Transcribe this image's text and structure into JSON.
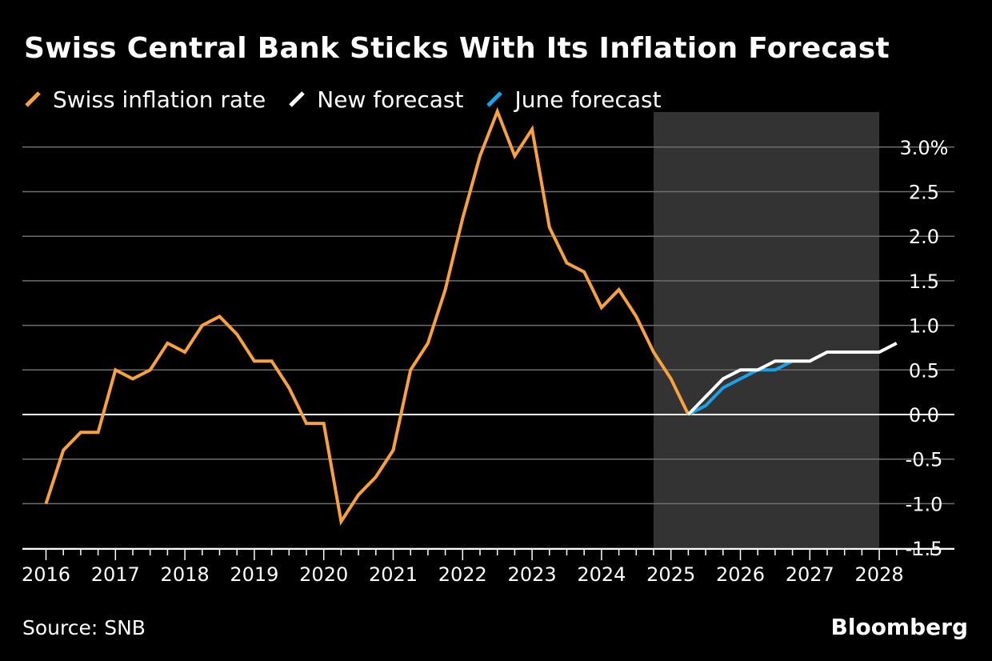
{
  "title": "Swiss Central Bank Sticks With Its Inflation Forecast",
  "source": "Source: SNB",
  "brand": "Bloomberg",
  "colors": {
    "background": "#000000",
    "inflation": "#F7A23E",
    "new_forecast": "#FFFFFF",
    "june_forecast": "#1BA1E8",
    "forecast_band": "#333333",
    "gridline": "#6E6E6E",
    "zero_line": "#FFFFFF"
  },
  "chart_data": {
    "type": "line",
    "title": "Swiss Central Bank Sticks With Its Inflation Forecast",
    "xlabel": "",
    "ylabel": "",
    "xlim": [
      2015.7,
      2029.0
    ],
    "ylim": [
      -1.5,
      3.0
    ],
    "x_ticks": [
      2016,
      2017,
      2018,
      2019,
      2020,
      2021,
      2022,
      2023,
      2024,
      2025,
      2026,
      2027,
      2028
    ],
    "x_tick_labels": [
      "2016",
      "2017",
      "2018",
      "2019",
      "2020",
      "2021",
      "2022",
      "2023",
      "2024",
      "2025",
      "2026",
      "2027",
      "2028"
    ],
    "y_ticks": [
      -1.5,
      -1.0,
      -0.5,
      0.0,
      0.5,
      1.0,
      1.5,
      2.0,
      2.5,
      3.0
    ],
    "y_tick_labels": [
      "-1.5",
      "-1.0",
      "-0.5",
      "0.0",
      "0.5",
      "1.0",
      "1.5",
      "2.0",
      "2.5",
      "3.0%"
    ],
    "grid": true,
    "legend_position": "top-left",
    "shaded_region": {
      "x_start": 2024.75,
      "x_end": 2028.0,
      "label": ""
    },
    "series": [
      {
        "name": "Swiss inflation rate",
        "color": "#F7A23E",
        "points": [
          [
            2016.0,
            -1.0
          ],
          [
            2016.25,
            -0.4
          ],
          [
            2016.5,
            -0.2
          ],
          [
            2016.75,
            -0.2
          ],
          [
            2017.0,
            0.5
          ],
          [
            2017.25,
            0.4
          ],
          [
            2017.5,
            0.5
          ],
          [
            2017.75,
            0.8
          ],
          [
            2018.0,
            0.7
          ],
          [
            2018.25,
            1.0
          ],
          [
            2018.5,
            1.1
          ],
          [
            2018.75,
            0.9
          ],
          [
            2019.0,
            0.6
          ],
          [
            2019.25,
            0.6
          ],
          [
            2019.5,
            0.3
          ],
          [
            2019.75,
            -0.1
          ],
          [
            2020.0,
            -0.1
          ],
          [
            2020.25,
            -1.2
          ],
          [
            2020.5,
            -0.9
          ],
          [
            2020.75,
            -0.7
          ],
          [
            2021.0,
            -0.4
          ],
          [
            2021.25,
            0.5
          ],
          [
            2021.5,
            0.8
          ],
          [
            2021.75,
            1.4
          ],
          [
            2022.0,
            2.2
          ],
          [
            2022.25,
            2.9
          ],
          [
            2022.5,
            3.4
          ],
          [
            2022.75,
            2.9
          ],
          [
            2023.0,
            3.2
          ],
          [
            2023.25,
            2.1
          ],
          [
            2023.5,
            1.7
          ],
          [
            2023.75,
            1.6
          ],
          [
            2024.0,
            1.2
          ],
          [
            2024.25,
            1.4
          ],
          [
            2024.5,
            1.1
          ],
          [
            2024.75,
            0.7
          ],
          [
            2025.0,
            0.4
          ],
          [
            2025.25,
            0.0
          ]
        ]
      },
      {
        "name": "New forecast",
        "color": "#FFFFFF",
        "points": [
          [
            2025.25,
            0.0
          ],
          [
            2025.5,
            0.2
          ],
          [
            2025.75,
            0.4
          ],
          [
            2026.0,
            0.5
          ],
          [
            2026.25,
            0.5
          ],
          [
            2026.5,
            0.6
          ],
          [
            2026.75,
            0.6
          ],
          [
            2027.0,
            0.6
          ],
          [
            2027.25,
            0.7
          ],
          [
            2027.5,
            0.7
          ],
          [
            2027.75,
            0.7
          ],
          [
            2028.0,
            0.7
          ],
          [
            2028.25,
            0.8
          ]
        ]
      },
      {
        "name": "June forecast",
        "color": "#1BA1E8",
        "points": [
          [
            2025.25,
            0.0
          ],
          [
            2025.5,
            0.1
          ],
          [
            2025.75,
            0.3
          ],
          [
            2026.0,
            0.4
          ],
          [
            2026.25,
            0.5
          ],
          [
            2026.5,
            0.5
          ],
          [
            2026.75,
            0.6
          ]
        ]
      }
    ]
  }
}
